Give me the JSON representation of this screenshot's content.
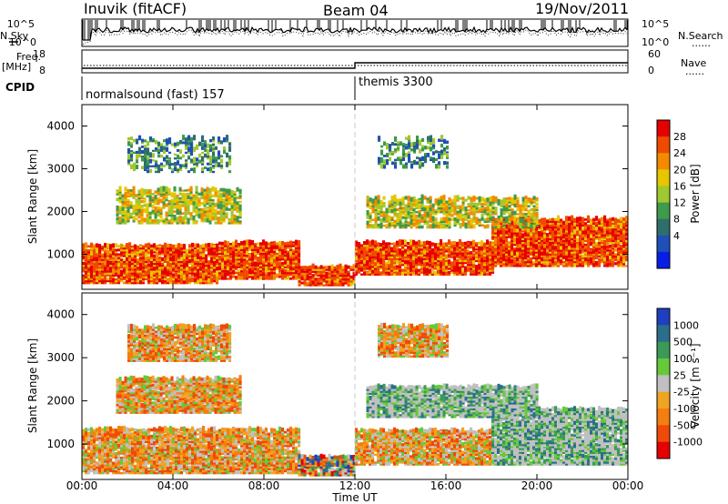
{
  "header": {
    "station": "Inuvik (fitACF)",
    "beam": "Beam 04",
    "date": "19/Nov/2011"
  },
  "strip_labels": {
    "nsky": "N.Sky",
    "nsearch": "N.Search",
    "freq_top": "Freq.",
    "freq_unit": "[MHz]",
    "nave": "Nave",
    "cpid": "CPID",
    "sky_ticks": [
      "10^5",
      "10^0"
    ],
    "freq_ticks": [
      "18",
      "8"
    ],
    "nave_ticks": [
      "60",
      "0"
    ],
    "dots": "......"
  },
  "cpid_modes": [
    {
      "name": "normalsound (fast)",
      "id": "157"
    },
    {
      "name": "themis",
      "id": "3300"
    }
  ],
  "colors": {
    "power": [
      "#0a1de8",
      "#1f4fb8",
      "#2f6e6c",
      "#3f9a4a",
      "#a0c830",
      "#e6c600",
      "#f48a00",
      "#f04a00",
      "#e60000"
    ],
    "velocity": [
      "#e60000",
      "#ef4a0a",
      "#f57e10",
      "#f0a424",
      "#c0c0c0",
      "#66c93a",
      "#3b9a58",
      "#2b6e8c",
      "#1e3fbf"
    ],
    "strip_trace": "#000000",
    "divider": "#c8c8c8"
  },
  "chart_data": [
    {
      "type": "heatmap",
      "panel": "power",
      "ylabel": "Slant Range [km]",
      "ylim": [
        180,
        4500
      ],
      "y_ticks": [
        1000,
        2000,
        3000,
        4000
      ],
      "xlim": [
        0,
        24
      ],
      "colorbar_label": "Power [dB]",
      "colorbar_ticks": [
        "28",
        "24",
        "20",
        "16",
        "12",
        "8",
        "4"
      ],
      "colorbar_range": [
        0,
        32
      ],
      "echo_bands": [
        {
          "t0": 0.0,
          "t1": 6.0,
          "r0": 300,
          "r1": 1200,
          "level": "high"
        },
        {
          "t0": 6.0,
          "t1": 9.5,
          "r0": 400,
          "r1": 1250,
          "level": "high"
        },
        {
          "t0": 9.5,
          "t1": 12.0,
          "r0": 250,
          "r1": 700,
          "level": "high"
        },
        {
          "t0": 12.0,
          "t1": 18.0,
          "r0": 500,
          "r1": 1250,
          "level": "high"
        },
        {
          "t0": 18.0,
          "t1": 24.0,
          "r0": 700,
          "r1": 1800,
          "level": "high"
        },
        {
          "t0": 1.5,
          "t1": 7.0,
          "r0": 1700,
          "r1": 2500,
          "level": "mid"
        },
        {
          "t0": 12.5,
          "t1": 20.0,
          "r0": 1600,
          "r1": 2300,
          "level": "mid"
        },
        {
          "t0": 2.0,
          "t1": 6.5,
          "r0": 2900,
          "r1": 3700,
          "level": "low"
        },
        {
          "t0": 13.0,
          "t1": 16.0,
          "r0": 3000,
          "r1": 3700,
          "level": "low"
        }
      ]
    },
    {
      "type": "heatmap",
      "panel": "velocity",
      "ylabel": "Slant Range [km]",
      "xlabel": "Time UT",
      "ylim": [
        180,
        4500
      ],
      "y_ticks": [
        1000,
        2000,
        3000,
        4000
      ],
      "xlim": [
        0,
        24
      ],
      "x_ticks": [
        "00:00",
        "04:00",
        "08:00",
        "12:00",
        "16:00",
        "20:00",
        "00:00"
      ],
      "colorbar_label": "Velocity [m s⁻¹]",
      "colorbar_ticks": [
        "1000",
        "500",
        "100",
        "25",
        "-25",
        "-100",
        "-500",
        "-1000"
      ],
      "colorbar_range": [
        -1200,
        1200
      ],
      "echo_bands": [
        {
          "t0": 0.0,
          "t1": 9.5,
          "r0": 300,
          "r1": 1300,
          "level": "neg"
        },
        {
          "t0": 9.5,
          "t1": 12.0,
          "r0": 250,
          "r1": 700,
          "level": "mixed"
        },
        {
          "t0": 12.0,
          "t1": 18.0,
          "r0": 500,
          "r1": 1300,
          "level": "neg"
        },
        {
          "t0": 18.0,
          "t1": 24.0,
          "r0": 500,
          "r1": 1800,
          "level": "pos"
        },
        {
          "t0": 1.5,
          "t1": 7.0,
          "r0": 1700,
          "r1": 2500,
          "level": "neg"
        },
        {
          "t0": 12.5,
          "t1": 20.0,
          "r0": 1600,
          "r1": 2300,
          "level": "pos"
        },
        {
          "t0": 2.0,
          "t1": 6.5,
          "r0": 2900,
          "r1": 3700,
          "level": "neg"
        },
        {
          "t0": 13.0,
          "t1": 16.0,
          "r0": 3000,
          "r1": 3700,
          "level": "neg"
        }
      ]
    }
  ]
}
